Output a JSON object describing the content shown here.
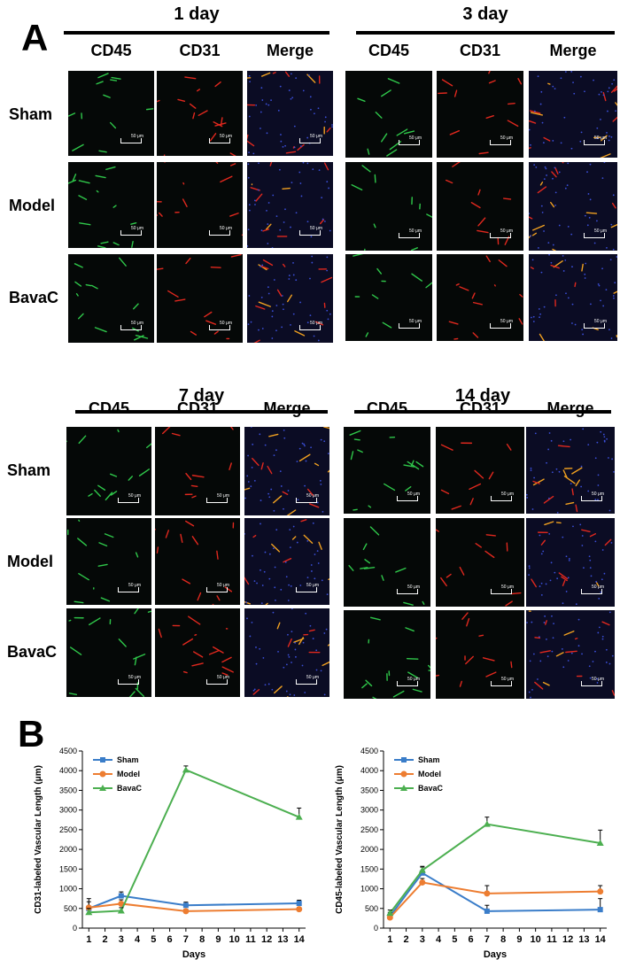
{
  "panel_a": {
    "letter": "A",
    "columns": [
      "CD45",
      "CD31",
      "Merge"
    ],
    "rows": [
      "Sham",
      "Model",
      "BavaC"
    ],
    "scale_label": "50 μm",
    "days": [
      {
        "title": "1 day"
      },
      {
        "title": "3 day"
      },
      {
        "title": "7 day"
      },
      {
        "title": "14 day"
      }
    ]
  },
  "panel_b": {
    "letter": "B"
  },
  "colors": {
    "sham": "#3a7dc9",
    "model": "#ed7d31",
    "bavac": "#4caf50",
    "cd45_signal": "#2fc74a",
    "cd31_signal": "#e0281e",
    "dapi": "#3b4fd8"
  },
  "chart_data": [
    {
      "type": "line",
      "ylabel": "CD31-labeled Vascular Length (μm)",
      "xlabel": "Days",
      "x_ticks": [
        "1",
        "2",
        "3",
        "4",
        "5",
        "6",
        "7",
        "8",
        "9",
        "10",
        "11",
        "12",
        "13",
        "14"
      ],
      "ylim": [
        0,
        4500
      ],
      "y_ticks": [
        "0",
        "500",
        "1000",
        "1500",
        "2000",
        "2500",
        "3000",
        "3500",
        "4000",
        "4500"
      ],
      "legend_position": "top-left",
      "series": [
        {
          "name": "Sham",
          "x": [
            1,
            3,
            7,
            14
          ],
          "y": [
            500,
            820,
            580,
            630
          ],
          "err": [
            250,
            100,
            80,
            80
          ]
        },
        {
          "name": "Model",
          "x": [
            1,
            3,
            7,
            14
          ],
          "y": [
            520,
            620,
            430,
            480
          ],
          "err": [
            150,
            100,
            50,
            50
          ]
        },
        {
          "name": "BavaC",
          "x": [
            1,
            3,
            7,
            14
          ],
          "y": [
            400,
            440,
            4020,
            2820
          ],
          "err": [
            100,
            80,
            100,
            230
          ]
        }
      ]
    },
    {
      "type": "line",
      "ylabel": "CD45-labeled Vascular Length (μm)",
      "xlabel": "Days",
      "x_ticks": [
        "1",
        "2",
        "3",
        "4",
        "5",
        "6",
        "7",
        "8",
        "9",
        "10",
        "11",
        "12",
        "13",
        "14"
      ],
      "ylim": [
        0,
        4500
      ],
      "y_ticks": [
        "0",
        "500",
        "1000",
        "1500",
        "2000",
        "2500",
        "3000",
        "3500",
        "4000",
        "4500"
      ],
      "legend_position": "top-left",
      "series": [
        {
          "name": "Sham",
          "x": [
            1,
            3,
            7,
            14
          ],
          "y": [
            300,
            1400,
            430,
            470
          ],
          "err": [
            100,
            150,
            150,
            280
          ]
        },
        {
          "name": "Model",
          "x": [
            1,
            3,
            7,
            14
          ],
          "y": [
            270,
            1160,
            880,
            930
          ],
          "err": [
            80,
            100,
            200,
            150
          ]
        },
        {
          "name": "BavaC",
          "x": [
            1,
            3,
            7,
            14
          ],
          "y": [
            380,
            1470,
            2640,
            2160
          ],
          "err": [
            80,
            100,
            180,
            330
          ]
        }
      ]
    }
  ]
}
